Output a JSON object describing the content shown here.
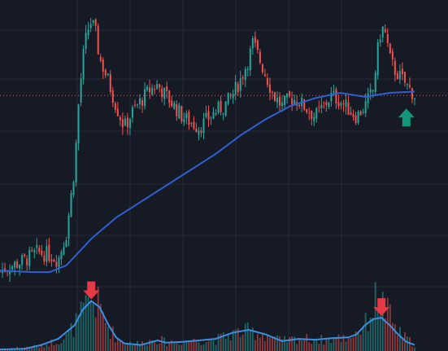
{
  "theme": {
    "background": "#161a25",
    "grid": "#262b38",
    "up_color": "#26a69a",
    "down_color": "#ef5350",
    "ma_color": "#2f5fd0",
    "volume_ma_color": "#3a8ee0",
    "price_line_color": "#ef5350",
    "buy_arrow_color": "#13977a",
    "sell_arrow_color": "#e53945"
  },
  "chart_data": {
    "type": "candlestick",
    "grid": true,
    "price_panel": {
      "ylim": [
        0,
        100
      ],
      "current_price": 72,
      "close_trend": [
        [
          0,
          6
        ],
        [
          3,
          8
        ],
        [
          6,
          10
        ],
        [
          9,
          13
        ],
        [
          12,
          12
        ],
        [
          14,
          10
        ],
        [
          16,
          20
        ],
        [
          18,
          45
        ],
        [
          19,
          70
        ],
        [
          20,
          86
        ],
        [
          21,
          96
        ],
        [
          22,
          100
        ],
        [
          23,
          96
        ],
        [
          24,
          86
        ],
        [
          26,
          78
        ],
        [
          28,
          68
        ],
        [
          30,
          60
        ],
        [
          32,
          66
        ],
        [
          34,
          70
        ],
        [
          36,
          74
        ],
        [
          38,
          76
        ],
        [
          40,
          72
        ],
        [
          42,
          68
        ],
        [
          44,
          64
        ],
        [
          46,
          62
        ],
        [
          48,
          60
        ],
        [
          50,
          63
        ],
        [
          52,
          66
        ],
        [
          54,
          68
        ],
        [
          56,
          72
        ],
        [
          58,
          78
        ],
        [
          60,
          86
        ],
        [
          61,
          92
        ],
        [
          62,
          88
        ],
        [
          64,
          80
        ],
        [
          66,
          72
        ],
        [
          68,
          68
        ],
        [
          70,
          71
        ],
        [
          72,
          70
        ],
        [
          74,
          67
        ],
        [
          76,
          64
        ],
        [
          78,
          68
        ],
        [
          80,
          72
        ],
        [
          82,
          70
        ],
        [
          84,
          67
        ],
        [
          86,
          64
        ],
        [
          88,
          68
        ],
        [
          90,
          74
        ],
        [
          91,
          88
        ],
        [
          92,
          98
        ],
        [
          93,
          95
        ],
        [
          94,
          86
        ],
        [
          95,
          82
        ],
        [
          96,
          80
        ],
        [
          97,
          78
        ],
        [
          98,
          76
        ],
        [
          99,
          74
        ],
        [
          100,
          72
        ]
      ],
      "moving_average": [
        [
          0,
          6
        ],
        [
          8,
          5.5
        ],
        [
          12,
          5.5
        ],
        [
          16,
          8
        ],
        [
          22,
          18
        ],
        [
          28,
          26
        ],
        [
          34,
          32
        ],
        [
          40,
          38
        ],
        [
          46,
          44
        ],
        [
          52,
          50
        ],
        [
          58,
          57
        ],
        [
          64,
          63
        ],
        [
          70,
          68
        ],
        [
          76,
          71
        ],
        [
          82,
          73
        ],
        [
          88,
          71.5
        ],
        [
          94,
          73
        ],
        [
          100,
          73.5
        ]
      ]
    },
    "volume_panel": {
      "ylim": [
        0,
        100
      ],
      "volume_trend": [
        [
          0,
          3
        ],
        [
          10,
          8
        ],
        [
          16,
          22
        ],
        [
          20,
          60
        ],
        [
          22,
          85
        ],
        [
          24,
          70
        ],
        [
          26,
          40
        ],
        [
          28,
          22
        ],
        [
          30,
          14
        ],
        [
          34,
          12
        ],
        [
          38,
          20
        ],
        [
          40,
          14
        ],
        [
          46,
          16
        ],
        [
          52,
          18
        ],
        [
          56,
          28
        ],
        [
          60,
          32
        ],
        [
          64,
          26
        ],
        [
          68,
          16
        ],
        [
          72,
          20
        ],
        [
          78,
          18
        ],
        [
          84,
          22
        ],
        [
          88,
          40
        ],
        [
          91,
          88
        ],
        [
          92,
          76
        ],
        [
          94,
          55
        ],
        [
          96,
          30
        ],
        [
          100,
          10
        ]
      ],
      "volume_ma": [
        [
          0,
          2
        ],
        [
          6,
          3
        ],
        [
          10,
          8
        ],
        [
          14,
          16
        ],
        [
          18,
          34
        ],
        [
          20,
          55
        ],
        [
          22,
          66
        ],
        [
          24,
          58
        ],
        [
          26,
          36
        ],
        [
          28,
          18
        ],
        [
          30,
          10
        ],
        [
          34,
          8
        ],
        [
          38,
          14
        ],
        [
          40,
          11
        ],
        [
          44,
          12
        ],
        [
          48,
          14
        ],
        [
          52,
          16
        ],
        [
          56,
          24
        ],
        [
          60,
          28
        ],
        [
          64,
          22
        ],
        [
          68,
          13
        ],
        [
          72,
          16
        ],
        [
          76,
          15
        ],
        [
          80,
          17
        ],
        [
          84,
          18
        ],
        [
          86,
          22
        ],
        [
          88,
          34
        ],
        [
          90,
          42
        ],
        [
          92,
          44
        ],
        [
          94,
          34
        ],
        [
          96,
          22
        ],
        [
          98,
          12
        ],
        [
          100,
          8
        ]
      ]
    },
    "signals": [
      {
        "type": "sell",
        "panel": "volume",
        "x": 22
      },
      {
        "type": "sell",
        "panel": "volume",
        "x": 92
      },
      {
        "type": "buy",
        "panel": "price",
        "x": 98
      }
    ]
  }
}
